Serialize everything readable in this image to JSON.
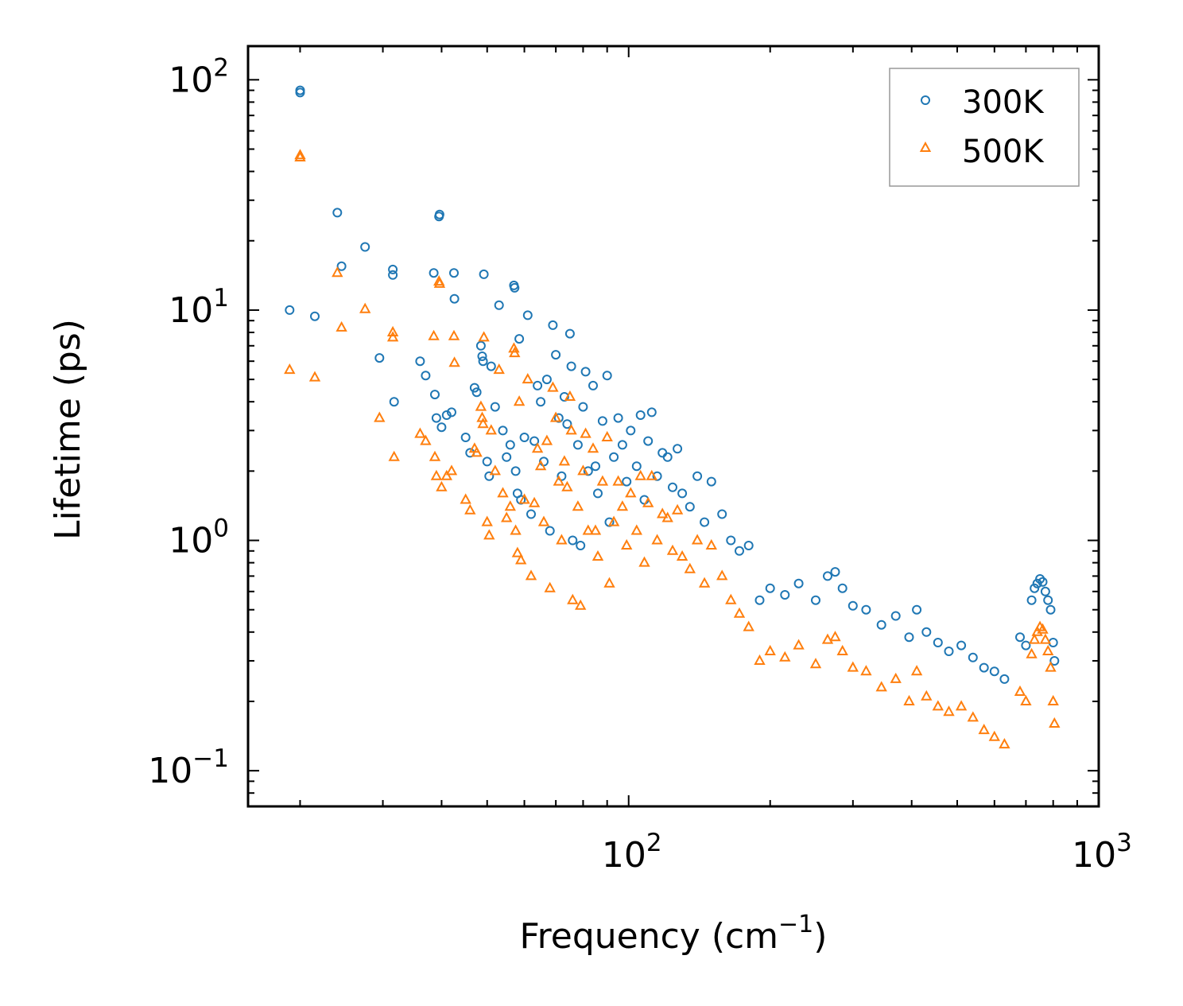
{
  "chart_data": {
    "type": "scatter",
    "title": "",
    "xlabel": "Frequency (cm",
    "xlabel_sup": "−1",
    "xlabel_suffix": ")",
    "ylabel": "Lifetime (ps)",
    "xscale": "log",
    "yscale": "log",
    "xlim": [
      15.5,
      1000
    ],
    "ylim": [
      0.07,
      140
    ],
    "x_major_ticks": [
      {
        "value": 100,
        "base": "10",
        "exp": "2"
      },
      {
        "value": 1000,
        "base": "10",
        "exp": "3"
      }
    ],
    "y_major_ticks": [
      {
        "value": 0.1,
        "base": "10",
        "exp": "−1"
      },
      {
        "value": 1,
        "base": "10",
        "exp": "0"
      },
      {
        "value": 10,
        "base": "10",
        "exp": "1"
      },
      {
        "value": 100,
        "base": "10",
        "exp": "2"
      }
    ],
    "legend": {
      "position": "top-right"
    },
    "series": [
      {
        "name": "300K",
        "marker": "circle",
        "color": "#1f77b4",
        "points": [
          [
            19,
            10.0
          ],
          [
            20,
            90
          ],
          [
            20,
            88
          ],
          [
            21.5,
            9.4
          ],
          [
            24,
            26.5
          ],
          [
            24.5,
            15.5
          ],
          [
            27.5,
            18.8
          ],
          [
            29.5,
            6.2
          ],
          [
            31.5,
            15.0
          ],
          [
            31.5,
            14.2
          ],
          [
            31.7,
            4.0
          ],
          [
            36,
            6.0
          ],
          [
            37,
            5.2
          ],
          [
            38.5,
            14.5
          ],
          [
            38.7,
            4.3
          ],
          [
            39,
            3.4
          ],
          [
            39.5,
            25.5
          ],
          [
            39.6,
            26.0
          ],
          [
            40,
            3.1
          ],
          [
            41,
            3.5
          ],
          [
            42,
            3.6
          ],
          [
            42.5,
            14.5
          ],
          [
            42.6,
            11.2
          ],
          [
            45,
            2.8
          ],
          [
            46,
            2.4
          ],
          [
            47,
            4.6
          ],
          [
            47.5,
            4.4
          ],
          [
            48.5,
            7.0
          ],
          [
            48.8,
            6.3
          ],
          [
            49,
            6.0
          ],
          [
            49.2,
            14.3
          ],
          [
            50,
            2.2
          ],
          [
            50.5,
            1.9
          ],
          [
            51,
            5.7
          ],
          [
            52,
            3.8
          ],
          [
            53,
            10.5
          ],
          [
            54,
            3.0
          ],
          [
            55,
            2.3
          ],
          [
            56,
            2.6
          ],
          [
            57,
            12.8
          ],
          [
            57.2,
            12.5
          ],
          [
            57.5,
            2.0
          ],
          [
            58,
            1.6
          ],
          [
            58.5,
            7.5
          ],
          [
            59,
            1.5
          ],
          [
            60,
            2.8
          ],
          [
            61,
            9.5
          ],
          [
            62,
            1.3
          ],
          [
            63,
            2.7
          ],
          [
            64,
            4.7
          ],
          [
            65,
            4.0
          ],
          [
            66,
            2.2
          ],
          [
            67,
            5.0
          ],
          [
            68,
            1.1
          ],
          [
            69,
            8.6
          ],
          [
            70,
            6.4
          ],
          [
            71,
            3.4
          ],
          [
            72,
            1.9
          ],
          [
            73,
            4.2
          ],
          [
            74,
            3.2
          ],
          [
            75,
            7.9
          ],
          [
            75.5,
            5.7
          ],
          [
            76,
            1.0
          ],
          [
            78,
            2.6
          ],
          [
            79,
            0.95
          ],
          [
            80,
            3.8
          ],
          [
            81,
            5.4
          ],
          [
            82,
            2.0
          ],
          [
            84,
            4.7
          ],
          [
            85,
            2.1
          ],
          [
            86,
            1.6
          ],
          [
            88,
            3.3
          ],
          [
            90,
            5.2
          ],
          [
            91,
            1.2
          ],
          [
            93,
            2.3
          ],
          [
            95,
            3.4
          ],
          [
            97,
            2.6
          ],
          [
            99,
            1.8
          ],
          [
            101,
            3.0
          ],
          [
            104,
            2.1
          ],
          [
            106,
            3.5
          ],
          [
            108,
            1.5
          ],
          [
            110,
            2.7
          ],
          [
            112,
            3.6
          ],
          [
            115,
            1.9
          ],
          [
            118,
            2.4
          ],
          [
            121,
            2.3
          ],
          [
            124,
            1.7
          ],
          [
            127,
            2.5
          ],
          [
            130,
            1.6
          ],
          [
            135,
            1.4
          ],
          [
            140,
            1.9
          ],
          [
            145,
            1.2
          ],
          [
            150,
            1.8
          ],
          [
            158,
            1.3
          ],
          [
            165,
            1.0
          ],
          [
            172,
            0.9
          ],
          [
            180,
            0.95
          ],
          [
            190,
            0.55
          ],
          [
            200,
            0.62
          ],
          [
            215,
            0.58
          ],
          [
            230,
            0.65
          ],
          [
            250,
            0.55
          ],
          [
            265,
            0.7
          ],
          [
            275,
            0.73
          ],
          [
            285,
            0.62
          ],
          [
            300,
            0.52
          ],
          [
            320,
            0.5
          ],
          [
            345,
            0.43
          ],
          [
            370,
            0.47
          ],
          [
            395,
            0.38
          ],
          [
            410,
            0.5
          ],
          [
            430,
            0.4
          ],
          [
            455,
            0.36
          ],
          [
            480,
            0.33
          ],
          [
            510,
            0.35
          ],
          [
            540,
            0.31
          ],
          [
            570,
            0.28
          ],
          [
            600,
            0.27
          ],
          [
            630,
            0.25
          ],
          [
            680,
            0.38
          ],
          [
            700,
            0.35
          ],
          [
            720,
            0.55
          ],
          [
            730,
            0.62
          ],
          [
            740,
            0.65
          ],
          [
            750,
            0.68
          ],
          [
            760,
            0.66
          ],
          [
            770,
            0.6
          ],
          [
            780,
            0.55
          ],
          [
            790,
            0.5
          ],
          [
            800,
            0.36
          ],
          [
            805,
            0.3
          ]
        ]
      },
      {
        "name": "500K",
        "marker": "triangle",
        "color": "#ff7f0e",
        "points": [
          [
            19,
            5.5
          ],
          [
            20,
            47
          ],
          [
            20,
            46
          ],
          [
            21.5,
            5.1
          ],
          [
            24,
            14.5
          ],
          [
            24.5,
            8.4
          ],
          [
            27.5,
            10.1
          ],
          [
            29.5,
            3.4
          ],
          [
            31.5,
            8.0
          ],
          [
            31.5,
            7.6
          ],
          [
            31.7,
            2.3
          ],
          [
            36,
            2.9
          ],
          [
            37,
            2.7
          ],
          [
            38.5,
            7.7
          ],
          [
            38.7,
            2.3
          ],
          [
            39,
            1.9
          ],
          [
            39.5,
            13.3
          ],
          [
            39.6,
            13.0
          ],
          [
            40,
            1.7
          ],
          [
            41,
            1.9
          ],
          [
            42,
            2.0
          ],
          [
            42.5,
            7.7
          ],
          [
            42.6,
            5.9
          ],
          [
            45,
            1.5
          ],
          [
            46,
            1.35
          ],
          [
            47,
            2.5
          ],
          [
            47.5,
            2.4
          ],
          [
            48.5,
            3.8
          ],
          [
            48.8,
            3.4
          ],
          [
            49,
            3.2
          ],
          [
            49.2,
            7.6
          ],
          [
            50,
            1.2
          ],
          [
            50.5,
            1.05
          ],
          [
            51,
            3.0
          ],
          [
            52,
            2.0
          ],
          [
            53,
            5.5
          ],
          [
            54,
            1.6
          ],
          [
            55,
            1.25
          ],
          [
            56,
            1.4
          ],
          [
            57,
            6.8
          ],
          [
            57.2,
            6.5
          ],
          [
            57.5,
            1.1
          ],
          [
            58,
            0.88
          ],
          [
            58.5,
            4.0
          ],
          [
            59,
            0.82
          ],
          [
            60,
            1.5
          ],
          [
            61,
            5.0
          ],
          [
            62,
            0.7
          ],
          [
            63,
            1.45
          ],
          [
            64,
            2.5
          ],
          [
            65,
            2.1
          ],
          [
            66,
            1.2
          ],
          [
            67,
            2.7
          ],
          [
            68,
            0.62
          ],
          [
            69,
            4.6
          ],
          [
            70,
            3.4
          ],
          [
            71,
            1.8
          ],
          [
            72,
            1.0
          ],
          [
            73,
            2.2
          ],
          [
            74,
            1.7
          ],
          [
            75,
            4.2
          ],
          [
            75.5,
            3.0
          ],
          [
            76,
            0.55
          ],
          [
            78,
            1.4
          ],
          [
            79,
            0.52
          ],
          [
            80,
            2.0
          ],
          [
            81,
            2.9
          ],
          [
            82,
            1.1
          ],
          [
            84,
            2.5
          ],
          [
            85,
            1.1
          ],
          [
            86,
            0.85
          ],
          [
            88,
            1.8
          ],
          [
            90,
            2.8
          ],
          [
            91,
            0.65
          ],
          [
            93,
            1.2
          ],
          [
            95,
            1.8
          ],
          [
            97,
            1.4
          ],
          [
            99,
            0.95
          ],
          [
            101,
            1.6
          ],
          [
            104,
            1.1
          ],
          [
            106,
            1.9
          ],
          [
            108,
            0.8
          ],
          [
            110,
            1.45
          ],
          [
            112,
            1.9
          ],
          [
            115,
            1.0
          ],
          [
            118,
            1.3
          ],
          [
            121,
            1.25
          ],
          [
            124,
            0.9
          ],
          [
            127,
            1.35
          ],
          [
            130,
            0.85
          ],
          [
            135,
            0.75
          ],
          [
            140,
            1.0
          ],
          [
            145,
            0.65
          ],
          [
            150,
            0.95
          ],
          [
            158,
            0.7
          ],
          [
            165,
            0.55
          ],
          [
            172,
            0.48
          ],
          [
            180,
            0.42
          ],
          [
            190,
            0.3
          ],
          [
            200,
            0.33
          ],
          [
            215,
            0.31
          ],
          [
            230,
            0.35
          ],
          [
            250,
            0.29
          ],
          [
            265,
            0.37
          ],
          [
            275,
            0.38
          ],
          [
            285,
            0.33
          ],
          [
            300,
            0.28
          ],
          [
            320,
            0.27
          ],
          [
            345,
            0.23
          ],
          [
            370,
            0.25
          ],
          [
            395,
            0.2
          ],
          [
            410,
            0.27
          ],
          [
            430,
            0.21
          ],
          [
            455,
            0.19
          ],
          [
            480,
            0.18
          ],
          [
            510,
            0.19
          ],
          [
            540,
            0.17
          ],
          [
            570,
            0.15
          ],
          [
            600,
            0.14
          ],
          [
            630,
            0.13
          ],
          [
            680,
            0.22
          ],
          [
            700,
            0.2
          ],
          [
            720,
            0.32
          ],
          [
            730,
            0.37
          ],
          [
            740,
            0.4
          ],
          [
            750,
            0.42
          ],
          [
            760,
            0.41
          ],
          [
            770,
            0.37
          ],
          [
            780,
            0.33
          ],
          [
            790,
            0.28
          ],
          [
            800,
            0.2
          ],
          [
            805,
            0.16
          ]
        ]
      }
    ]
  }
}
